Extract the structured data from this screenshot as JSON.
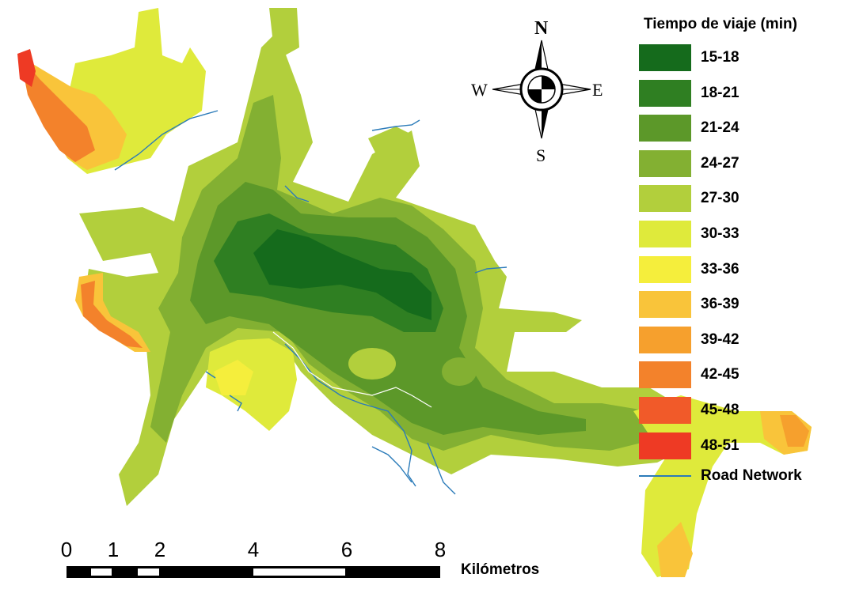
{
  "compass": {
    "north": "N",
    "south": "S",
    "east": "E",
    "west": "W"
  },
  "legend": {
    "title": "Tiempo de viaje (min)",
    "classes": [
      {
        "label": "15-18",
        "color": "#156b1c"
      },
      {
        "label": "18-21",
        "color": "#2f7f22"
      },
      {
        "label": "21-24",
        "color": "#5c9829"
      },
      {
        "label": "24-27",
        "color": "#83b032"
      },
      {
        "label": "27-30",
        "color": "#b2cf3c"
      },
      {
        "label": "30-33",
        "color": "#dfea3b"
      },
      {
        "label": "33-36",
        "color": "#f5ee3c"
      },
      {
        "label": "36-39",
        "color": "#f9c43a"
      },
      {
        "label": "39-42",
        "color": "#f6a02d"
      },
      {
        "label": "42-45",
        "color": "#f3822b"
      },
      {
        "label": "45-48",
        "color": "#f15a29"
      },
      {
        "label": "48-51",
        "color": "#ee3a24"
      }
    ],
    "road_label": "Road Network",
    "road_color": "#2b7bb9"
  },
  "scale_bar": {
    "ticks": [
      "0",
      "1",
      "2",
      "4",
      "6",
      "8"
    ],
    "unit": "Kilómetros"
  }
}
